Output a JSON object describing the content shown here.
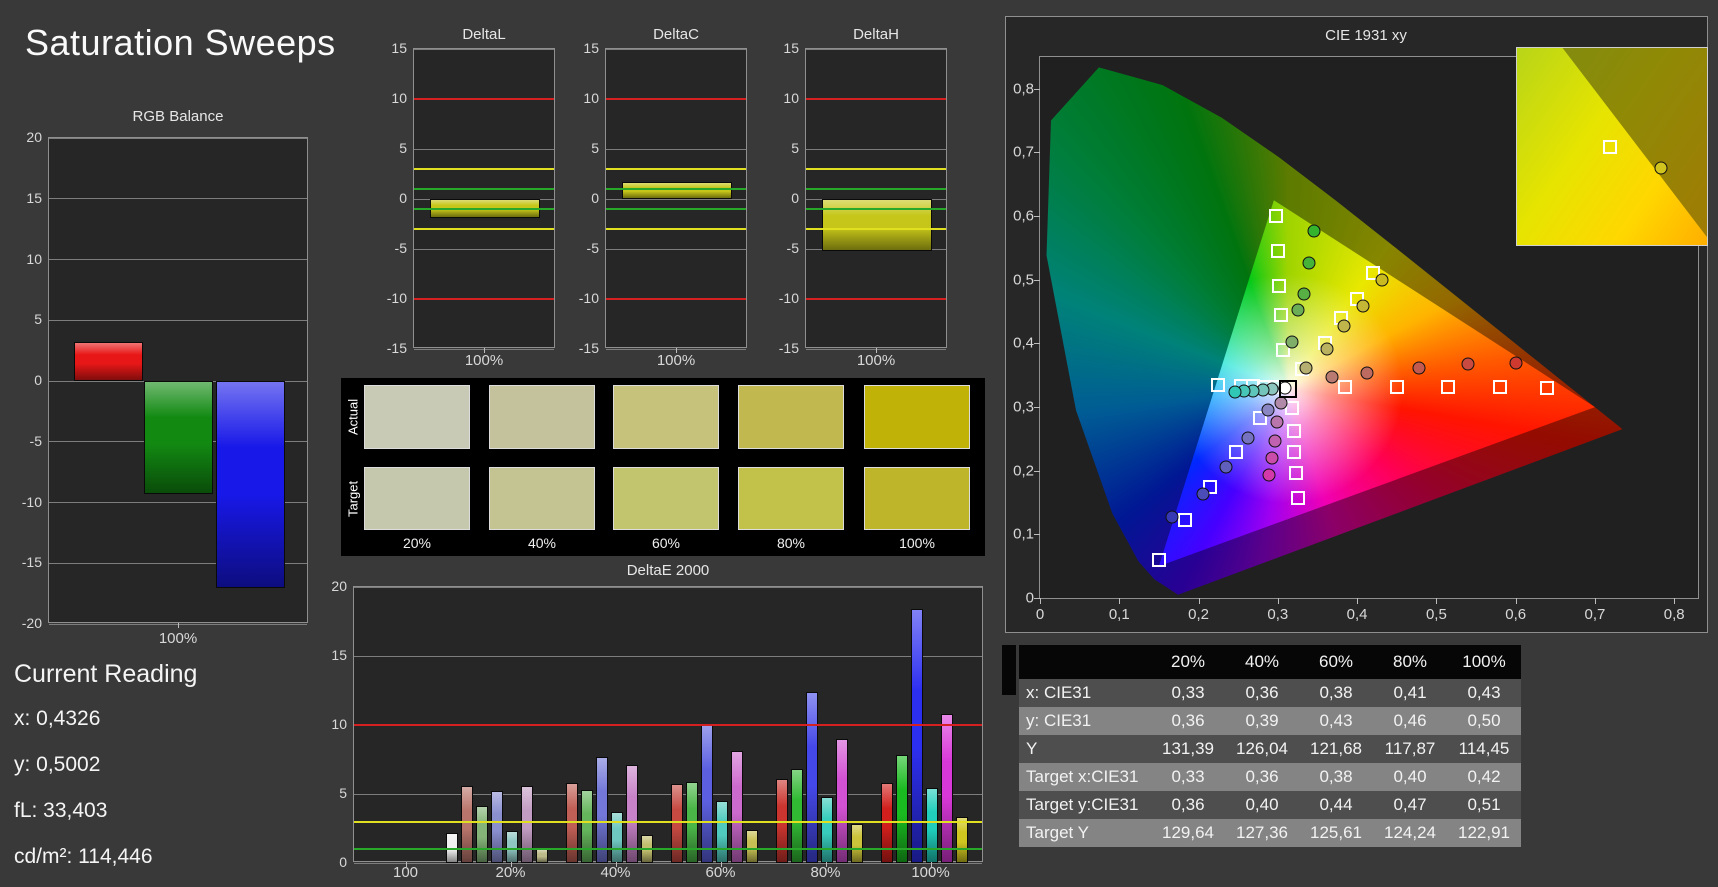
{
  "page": {
    "title": "Saturation Sweeps",
    "background": "#393939"
  },
  "current_reading": {
    "heading": "Current Reading",
    "lines": [
      "x: 0,4326",
      "y: 0,5002",
      "fL: 33,403",
      "cd/m²: 114,446"
    ]
  },
  "swatches": {
    "row_labels": [
      "Actual",
      "Target"
    ],
    "col_labels": [
      "20%",
      "40%",
      "60%",
      "80%",
      "100%"
    ],
    "actual": [
      "#c9cab5",
      "#c4c29c",
      "#c6c17b",
      "#c1b94f",
      "#c1b208"
    ],
    "target": [
      "#c6c8ae",
      "#c3c492",
      "#c3c46e",
      "#c2c24a",
      "#bfb52a"
    ]
  },
  "table": {
    "corner": "",
    "col_headers": [
      "20%",
      "40%",
      "60%",
      "80%",
      "100%"
    ],
    "rows": [
      {
        "label": "x: CIE31",
        "values": [
          "0,33",
          "0,36",
          "0,38",
          "0,41",
          "0,43"
        ]
      },
      {
        "label": "y: CIE31",
        "values": [
          "0,36",
          "0,39",
          "0,43",
          "0,46",
          "0,50"
        ]
      },
      {
        "label": "Y",
        "values": [
          "131,39",
          "126,04",
          "121,68",
          "117,87",
          "114,45"
        ]
      },
      {
        "label": "Target x:CIE31",
        "values": [
          "0,33",
          "0,36",
          "0,38",
          "0,40",
          "0,42"
        ]
      },
      {
        "label": "Target y:CIE31",
        "values": [
          "0,36",
          "0,40",
          "0,44",
          "0,47",
          "0,51"
        ]
      },
      {
        "label": "Target Y",
        "values": [
          "129,64",
          "127,36",
          "125,61",
          "124,24",
          "122,91"
        ]
      }
    ],
    "row_colors": [
      "#4e4e4e",
      "#848484"
    ],
    "header_color": "#060606"
  },
  "chart_data": [
    {
      "id": "rgb_balance",
      "type": "bar",
      "title": "RGB Balance",
      "categories": [
        "100%"
      ],
      "ylim": [
        -20,
        20
      ],
      "ylabel": "",
      "series": [
        {
          "name": "Red",
          "color": "#e81717",
          "values": [
            3.2
          ]
        },
        {
          "name": "Green",
          "color": "#128a12",
          "values": [
            -9.3
          ]
        },
        {
          "name": "Blue",
          "color": "#1818e8",
          "values": [
            -17.0
          ]
        }
      ]
    },
    {
      "id": "delta_l",
      "type": "bar",
      "title": "DeltaL",
      "categories": [
        "100%"
      ],
      "ylim": [
        -15,
        15
      ],
      "ref_lines": [
        {
          "value": 10,
          "color": "#d42020"
        },
        {
          "value": 3,
          "color": "#e0e020"
        },
        {
          "value": 1,
          "color": "#28a828"
        },
        {
          "value": -1,
          "color": "#28a828"
        },
        {
          "value": -3,
          "color": "#e0e020"
        },
        {
          "value": -10,
          "color": "#d42020"
        }
      ],
      "series": [
        {
          "name": "DeltaL",
          "color": "#c6c61a",
          "values": [
            -1.9
          ]
        }
      ]
    },
    {
      "id": "delta_c",
      "type": "bar",
      "title": "DeltaC",
      "categories": [
        "100%"
      ],
      "ylim": [
        -15,
        15
      ],
      "ref_lines": [
        {
          "value": 10,
          "color": "#d42020"
        },
        {
          "value": 3,
          "color": "#e0e020"
        },
        {
          "value": 1,
          "color": "#28a828"
        },
        {
          "value": -1,
          "color": "#28a828"
        },
        {
          "value": -3,
          "color": "#e0e020"
        },
        {
          "value": -10,
          "color": "#d42020"
        }
      ],
      "series": [
        {
          "name": "DeltaC",
          "color": "#c6c61a",
          "values": [
            1.7
          ]
        }
      ]
    },
    {
      "id": "delta_h",
      "type": "bar",
      "title": "DeltaH",
      "categories": [
        "100%"
      ],
      "ylim": [
        -15,
        15
      ],
      "ref_lines": [
        {
          "value": 10,
          "color": "#d42020"
        },
        {
          "value": 3,
          "color": "#e0e020"
        },
        {
          "value": 1,
          "color": "#28a828"
        },
        {
          "value": -1,
          "color": "#28a828"
        },
        {
          "value": -3,
          "color": "#e0e020"
        },
        {
          "value": -10,
          "color": "#d42020"
        }
      ],
      "series": [
        {
          "name": "DeltaH",
          "color": "#c6c61a",
          "values": [
            -5.2
          ]
        }
      ]
    },
    {
      "id": "delta_e2000",
      "type": "bar",
      "title": "DeltaE 2000",
      "categories": [
        "100",
        "20%",
        "40%",
        "60%",
        "80%",
        "100%"
      ],
      "ylim": [
        0,
        20
      ],
      "ref_lines": [
        {
          "value": 10,
          "color": "#d42020"
        },
        {
          "value": 3,
          "color": "#e0e020"
        },
        {
          "value": 1,
          "color": "#28a828"
        }
      ],
      "series": [
        {
          "name": "Red",
          "values": [
            null,
            5.6,
            5.8,
            5.7,
            6.1,
            5.8
          ],
          "colors": [
            null,
            "#b9756b",
            "#c05f55",
            "#c64a42",
            "#cb352f",
            "#d01f1c"
          ]
        },
        {
          "name": "Green",
          "values": [
            null,
            4.1,
            5.3,
            5.9,
            6.8,
            7.8
          ],
          "colors": [
            null,
            "#84b478",
            "#65b55c",
            "#4bb648",
            "#32b934",
            "#1abb20"
          ]
        },
        {
          "name": "Blue",
          "values": [
            null,
            5.2,
            7.7,
            10.0,
            12.4,
            18.4
          ],
          "colors": [
            null,
            "#8a8fd0",
            "#7378d8",
            "#5c60e0",
            "#4548e8",
            "#2d2ff0"
          ]
        },
        {
          "name": "Cyan",
          "values": [
            null,
            2.3,
            3.7,
            4.5,
            4.8,
            5.4
          ],
          "colors": [
            null,
            "#8fc6c2",
            "#6fc8c0",
            "#50cabe",
            "#38ccbc",
            "#20cebb"
          ]
        },
        {
          "name": "Magenta",
          "values": [
            null,
            5.6,
            7.1,
            8.1,
            9.0,
            10.8
          ],
          "colors": [
            null,
            "#c29cc2",
            "#c883c8",
            "#cd6acd",
            "#d351d3",
            "#d938d9"
          ]
        },
        {
          "name": "Yellow",
          "values": [
            null,
            1.0,
            2.0,
            2.4,
            2.8,
            3.3
          ],
          "colors": [
            null,
            "#bcba88",
            "#c1bd6e",
            "#c6c054",
            "#cbc33a",
            "#d0c620"
          ]
        },
        {
          "name": "White",
          "values": [
            2.2,
            null,
            null,
            null,
            null,
            null
          ],
          "colors": [
            "#f0f0f0",
            null,
            null,
            null,
            null,
            null
          ]
        }
      ]
    },
    {
      "id": "cie1931",
      "type": "scatter",
      "title": "CIE 1931 xy",
      "x_ticks": [
        "0",
        "0,1",
        "0,2",
        "0,3",
        "0,4",
        "0,5",
        "0,6",
        "0,7",
        "0,8"
      ],
      "y_ticks": [
        "0",
        "0,1",
        "0,2",
        "0,3",
        "0,4",
        "0,5",
        "0,6",
        "0,7",
        "0,8"
      ],
      "x_max": 0.83,
      "y_max": 0.85,
      "white_point": {
        "x": 0.313,
        "y": 0.329
      },
      "white_measured": {
        "x": 0.309,
        "y": 0.33,
        "color": "#ffffff"
      },
      "gamut_triangle": [
        [
          0.7,
          0.3
        ],
        [
          0.295,
          0.625
        ],
        [
          0.15,
          0.05
        ]
      ],
      "sweeps": [
        {
          "name": "red",
          "targets": [
            [
              0.385,
              0.331
            ],
            [
              0.45,
              0.331
            ],
            [
              0.515,
              0.332
            ],
            [
              0.58,
              0.332
            ],
            [
              0.64,
              0.33
            ]
          ],
          "measured": [
            [
              0.368,
              0.347
            ],
            [
              0.413,
              0.354
            ],
            [
              0.478,
              0.362
            ],
            [
              0.54,
              0.367
            ],
            [
              0.6,
              0.37
            ]
          ],
          "dot_colors": [
            "#b97a72",
            "#bd6a60",
            "#c25a50",
            "#c84a40",
            "#ce3a30"
          ]
        },
        {
          "name": "green",
          "targets": [
            [
              0.306,
              0.39
            ],
            [
              0.304,
              0.445
            ],
            [
              0.302,
              0.49
            ],
            [
              0.3,
              0.545
            ],
            [
              0.298,
              0.6
            ]
          ],
          "measured": [
            [
              0.318,
              0.402
            ],
            [
              0.326,
              0.452
            ],
            [
              0.333,
              0.478
            ],
            [
              0.339,
              0.527
            ],
            [
              0.346,
              0.576
            ]
          ],
          "dot_colors": [
            "#7fae68",
            "#6cae55",
            "#58b045",
            "#45b238",
            "#33b42c"
          ]
        },
        {
          "name": "blue",
          "targets": [
            [
              0.277,
              0.283
            ],
            [
              0.247,
              0.23
            ],
            [
              0.215,
              0.175
            ],
            [
              0.183,
              0.122
            ],
            [
              0.15,
              0.06
            ]
          ],
          "measured": [
            [
              0.287,
              0.295
            ],
            [
              0.262,
              0.251
            ],
            [
              0.235,
              0.206
            ],
            [
              0.205,
              0.163
            ],
            [
              0.166,
              0.128
            ]
          ],
          "dot_colors": [
            "#8a86c4",
            "#7572c0",
            "#605fbc",
            "#4b4cb8",
            "#3739b4"
          ]
        },
        {
          "name": "cyan",
          "targets": [
            [
              0.296,
              0.332
            ],
            [
              0.283,
              0.332
            ],
            [
              0.269,
              0.333
            ],
            [
              0.254,
              0.333
            ],
            [
              0.225,
              0.334
            ]
          ],
          "measured": [
            [
              0.293,
              0.328
            ],
            [
              0.281,
              0.327
            ],
            [
              0.269,
              0.326
            ],
            [
              0.257,
              0.325
            ],
            [
              0.246,
              0.324
            ]
          ],
          "dot_colors": [
            "#8cc4be",
            "#75c4bc",
            "#5ec5ba",
            "#47c6b8",
            "#30c7b6"
          ]
        },
        {
          "name": "magenta",
          "targets": [
            [
              0.318,
              0.298
            ],
            [
              0.32,
              0.262
            ],
            [
              0.321,
              0.23
            ],
            [
              0.323,
              0.196
            ],
            [
              0.325,
              0.157
            ]
          ],
          "measured": [
            [
              0.304,
              0.307
            ],
            [
              0.299,
              0.276
            ],
            [
              0.296,
              0.247
            ],
            [
              0.293,
              0.22
            ],
            [
              0.289,
              0.193
            ]
          ],
          "dot_colors": [
            "#b08aa8",
            "#b976ac",
            "#c162b0",
            "#ca4dac",
            "#d339a8"
          ]
        },
        {
          "name": "yellow",
          "targets": [
            [
              0.33,
              0.36
            ],
            [
              0.36,
              0.4
            ],
            [
              0.38,
              0.44
            ],
            [
              0.4,
              0.47
            ],
            [
              0.42,
              0.51
            ]
          ],
          "measured": [
            [
              0.335,
              0.362
            ],
            [
              0.362,
              0.392
            ],
            [
              0.383,
              0.428
            ],
            [
              0.408,
              0.458
            ],
            [
              0.432,
              0.5
            ]
          ],
          "dot_colors": [
            "#b5b072",
            "#bab25e",
            "#bfb54a",
            "#c4b736",
            "#c9ba22"
          ]
        }
      ],
      "inset": {
        "square_pos": [
          49,
          50
        ],
        "circle_pos": [
          76,
          61
        ],
        "circle_color": "#d2c41e"
      }
    }
  ]
}
